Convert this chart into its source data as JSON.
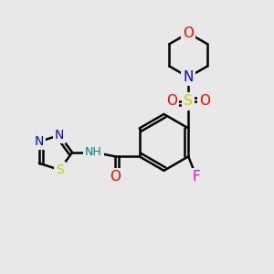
{
  "bg_color": "#e8e8e8",
  "atom_colors": {
    "C": "#000000",
    "N": "#0000ff",
    "O": "#ff0000",
    "S_sulfonyl": "#cccc00",
    "S_thiadiazole": "#cccc00",
    "F": "#ff00ff",
    "H": "#808080",
    "NH": "#008080"
  },
  "bond_color": "#000000"
}
